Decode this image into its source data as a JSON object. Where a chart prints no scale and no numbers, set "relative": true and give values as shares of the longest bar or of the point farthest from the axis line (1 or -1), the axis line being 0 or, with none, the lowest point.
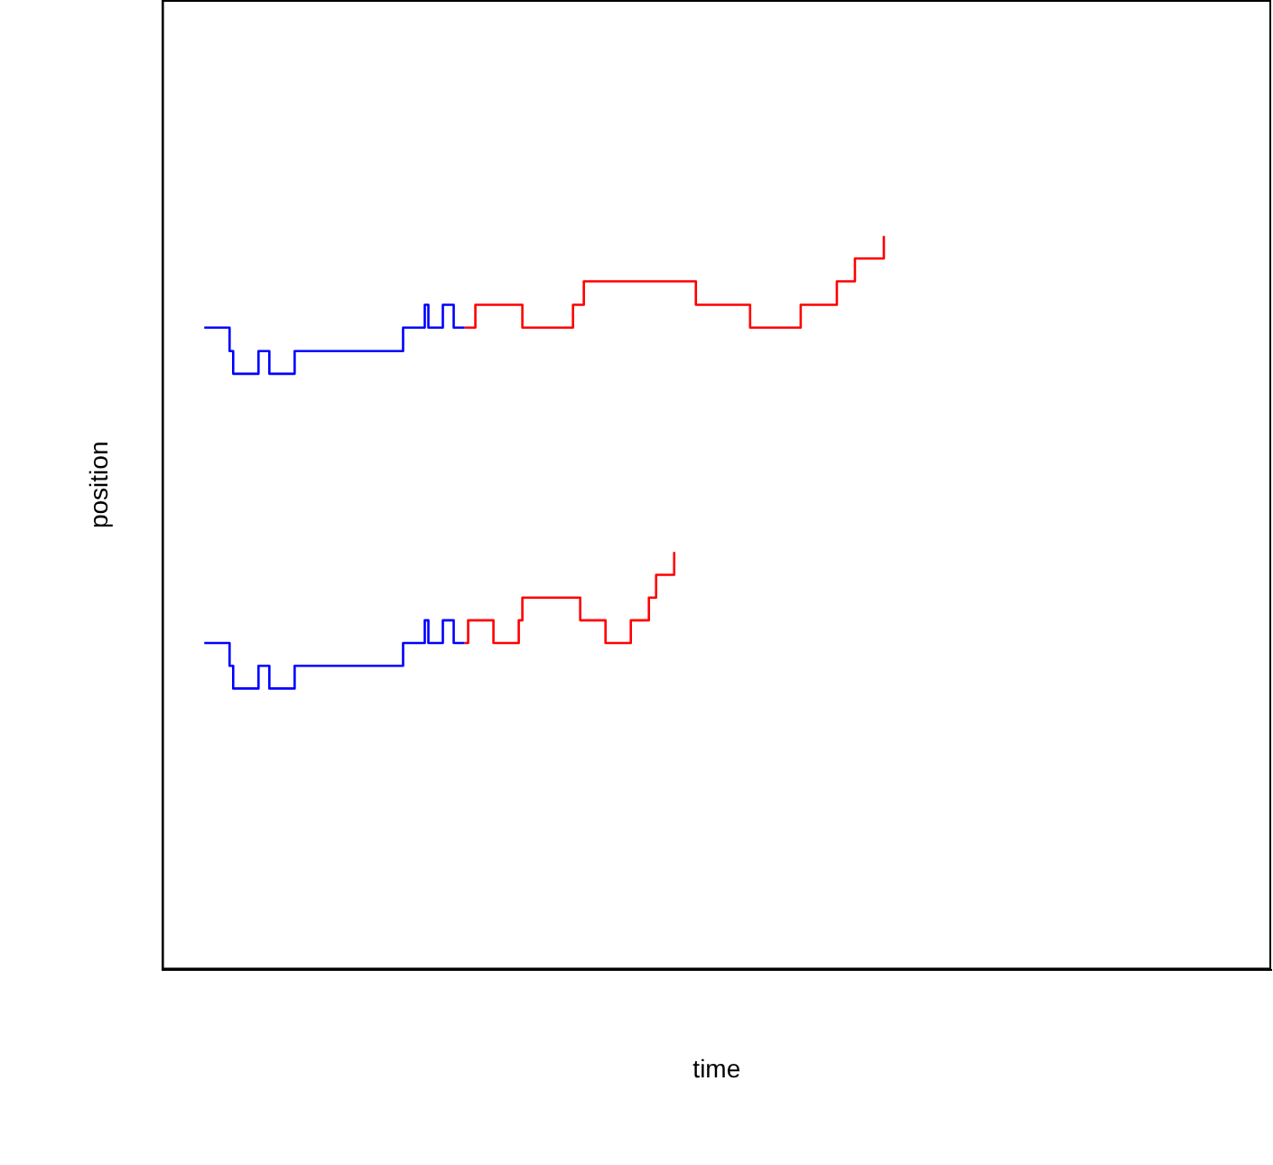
{
  "chart_data": {
    "type": "step",
    "relative": true,
    "xlabel": "time",
    "ylabel": "position",
    "grid": false,
    "legend": false,
    "marker": "none",
    "line_style": "solid",
    "categories": [
      null,
      null,
      null,
      null,
      null,
      null,
      null,
      null,
      null,
      null,
      null,
      null,
      null,
      null,
      null,
      null,
      null,
      null,
      null,
      null,
      null,
      null,
      null,
      null,
      null,
      null,
      null,
      null,
      null,
      null,
      null,
      null,
      null,
      null,
      null,
      null,
      null,
      null,
      null,
      null,
      null,
      null,
      null,
      null,
      null,
      null,
      null,
      null,
      null,
      null,
      null,
      null,
      null,
      null,
      null,
      null,
      null,
      null,
      null,
      null,
      null,
      null,
      null,
      null,
      null,
      null,
      null,
      null,
      null,
      null,
      null,
      null,
      null,
      null,
      null,
      null,
      null,
      null,
      null,
      null,
      null,
      null,
      null,
      null,
      null,
      null,
      null,
      null,
      null,
      null,
      null,
      null,
      null,
      null,
      null,
      null,
      null,
      null,
      null,
      null,
      null,
      null,
      null,
      null,
      null,
      null,
      null,
      null,
      null,
      null,
      null,
      null,
      null,
      null,
      null,
      null,
      null,
      null,
      null,
      null,
      null,
      null,
      null,
      null,
      null,
      null,
      null,
      null,
      null,
      null,
      null,
      null,
      null,
      null,
      null,
      null,
      null,
      null,
      null,
      null,
      null,
      null,
      null,
      null,
      null,
      null,
      null,
      null,
      null,
      null,
      null,
      null,
      null,
      null,
      null,
      null,
      null,
      null,
      null,
      null,
      null,
      null,
      null,
      null,
      null,
      null,
      null,
      null,
      null,
      null,
      null,
      null,
      null,
      null,
      null,
      null,
      null,
      null,
      null,
      null,
      null,
      null,
      null,
      null,
      null,
      null,
      null,
      null,
      null
    ],
    "series": [
      {
        "color": "#0000ff",
        "values": [
          0.875,
          0.875,
          0.875,
          0.875,
          0.875,
          0.875,
          0.875,
          0.843,
          0.812,
          0.812,
          0.812,
          0.812,
          0.812,
          0.812,
          0.812,
          0.843,
          0.843,
          0.843,
          0.812,
          0.812,
          0.812,
          0.812,
          0.812,
          0.812,
          0.812,
          0.843,
          0.843,
          0.843,
          0.843,
          0.843,
          0.843,
          0.843,
          0.843,
          0.843,
          0.843,
          0.843,
          0.843,
          0.843,
          0.843,
          0.843,
          0.843,
          0.843,
          0.843,
          0.843,
          0.843,
          0.843,
          0.843,
          0.843,
          0.843,
          0.843,
          0.843,
          0.843,
          0.843,
          0.843,
          0.843,
          0.875,
          0.875,
          0.875,
          0.875,
          0.875,
          0.875,
          0.906,
          0.875,
          0.875,
          0.875,
          0.875,
          0.906,
          0.906,
          0.906,
          0.875,
          0.875,
          0.875,
          0.875,
          null,
          null,
          null,
          null,
          null,
          null,
          null,
          null,
          null,
          null,
          null,
          null,
          null,
          null,
          null,
          null,
          null,
          null,
          null,
          null,
          null,
          null,
          null,
          null,
          null,
          null,
          null,
          null,
          null,
          null,
          null,
          null,
          null,
          null,
          null,
          null,
          null,
          null,
          null,
          null,
          null,
          null,
          null,
          null,
          null,
          null,
          null,
          null,
          null,
          null,
          null,
          null,
          null,
          null,
          null,
          null,
          null,
          null,
          null,
          null,
          null,
          null,
          null,
          null,
          null,
          null,
          null,
          null,
          null,
          null,
          null,
          null,
          null,
          null,
          null,
          null,
          null,
          null,
          null,
          null,
          null,
          null,
          null,
          null,
          null,
          null,
          null,
          null,
          null,
          null,
          null,
          null,
          null,
          null,
          null,
          null,
          null,
          null,
          null,
          null,
          null,
          null,
          null,
          null,
          null,
          null,
          null,
          null,
          null,
          null,
          null,
          null,
          null,
          null,
          null,
          null
        ]
      },
      {
        "color": "#ff0000",
        "values": [
          null,
          null,
          null,
          null,
          null,
          null,
          null,
          null,
          null,
          null,
          null,
          null,
          null,
          null,
          null,
          null,
          null,
          null,
          null,
          null,
          null,
          null,
          null,
          null,
          null,
          null,
          null,
          null,
          null,
          null,
          null,
          null,
          null,
          null,
          null,
          null,
          null,
          null,
          null,
          null,
          null,
          null,
          null,
          null,
          null,
          null,
          null,
          null,
          null,
          null,
          null,
          null,
          null,
          null,
          null,
          null,
          null,
          null,
          null,
          null,
          null,
          null,
          null,
          null,
          null,
          null,
          null,
          null,
          null,
          null,
          null,
          null,
          0.875,
          0.875,
          0.875,
          0.906,
          0.906,
          0.906,
          0.906,
          0.906,
          0.906,
          0.906,
          0.906,
          0.906,
          0.906,
          0.906,
          0.906,
          0.906,
          0.875,
          0.875,
          0.875,
          0.875,
          0.875,
          0.875,
          0.875,
          0.875,
          0.875,
          0.875,
          0.875,
          0.875,
          0.875,
          0.875,
          0.906,
          0.906,
          0.906,
          0.938,
          0.938,
          0.938,
          0.938,
          0.938,
          0.938,
          0.938,
          0.938,
          0.938,
          0.938,
          0.938,
          0.938,
          0.938,
          0.938,
          0.938,
          0.938,
          0.938,
          0.938,
          0.938,
          0.938,
          0.938,
          0.938,
          0.938,
          0.938,
          0.938,
          0.938,
          0.938,
          0.938,
          0.938,
          0.938,
          0.938,
          0.906,
          0.906,
          0.906,
          0.906,
          0.906,
          0.906,
          0.906,
          0.906,
          0.906,
          0.906,
          0.906,
          0.906,
          0.906,
          0.906,
          0.906,
          0.875,
          0.875,
          0.875,
          0.875,
          0.875,
          0.875,
          0.875,
          0.875,
          0.875,
          0.875,
          0.875,
          0.875,
          0.875,
          0.875,
          0.906,
          0.906,
          0.906,
          0.906,
          0.906,
          0.906,
          0.906,
          0.906,
          0.906,
          0.906,
          0.938,
          0.938,
          0.938,
          0.938,
          0.938,
          0.969,
          0.969,
          0.969,
          0.969,
          0.969,
          0.969,
          0.969,
          0.969,
          1
        ]
      },
      {
        "color": "#0000ff",
        "values": [
          0.445,
          0.445,
          0.445,
          0.445,
          0.445,
          0.445,
          0.445,
          0.414,
          0.383,
          0.383,
          0.383,
          0.383,
          0.383,
          0.383,
          0.383,
          0.414,
          0.414,
          0.414,
          0.383,
          0.383,
          0.383,
          0.383,
          0.383,
          0.383,
          0.383,
          0.414,
          0.414,
          0.414,
          0.414,
          0.414,
          0.414,
          0.414,
          0.414,
          0.414,
          0.414,
          0.414,
          0.414,
          0.414,
          0.414,
          0.414,
          0.414,
          0.414,
          0.414,
          0.414,
          0.414,
          0.414,
          0.414,
          0.414,
          0.414,
          0.414,
          0.414,
          0.414,
          0.414,
          0.414,
          0.414,
          0.445,
          0.445,
          0.445,
          0.445,
          0.445,
          0.445,
          0.476,
          0.445,
          0.445,
          0.445,
          0.445,
          0.476,
          0.476,
          0.476,
          0.445,
          0.445,
          0.445,
          0.445,
          null,
          null,
          null,
          null,
          null,
          null,
          null,
          null,
          null,
          null,
          null,
          null,
          null,
          null,
          null,
          null,
          null,
          null,
          null,
          null,
          null,
          null,
          null,
          null,
          null,
          null,
          null,
          null,
          null,
          null,
          null,
          null,
          null,
          null,
          null,
          null,
          null,
          null,
          null,
          null,
          null,
          null,
          null,
          null,
          null,
          null,
          null,
          null,
          null,
          null,
          null,
          null,
          null,
          null,
          null,
          null,
          null,
          null,
          null,
          null,
          null,
          null,
          null,
          null,
          null,
          null,
          null,
          null,
          null,
          null,
          null,
          null,
          null,
          null,
          null,
          null,
          null,
          null,
          null,
          null,
          null,
          null,
          null,
          null,
          null,
          null,
          null,
          null,
          null,
          null,
          null,
          null,
          null,
          null,
          null,
          null,
          null,
          null,
          null,
          null,
          null,
          null,
          null,
          null,
          null,
          null,
          null,
          null,
          null,
          null,
          null,
          null,
          null,
          null,
          null,
          null
        ]
      },
      {
        "color": "#ff0000",
        "values": [
          null,
          null,
          null,
          null,
          null,
          null,
          null,
          null,
          null,
          null,
          null,
          null,
          null,
          null,
          null,
          null,
          null,
          null,
          null,
          null,
          null,
          null,
          null,
          null,
          null,
          null,
          null,
          null,
          null,
          null,
          null,
          null,
          null,
          null,
          null,
          null,
          null,
          null,
          null,
          null,
          null,
          null,
          null,
          null,
          null,
          null,
          null,
          null,
          null,
          null,
          null,
          null,
          null,
          null,
          null,
          null,
          null,
          null,
          null,
          null,
          null,
          null,
          null,
          null,
          null,
          null,
          null,
          null,
          null,
          null,
          null,
          null,
          0.445,
          0.476,
          0.476,
          0.476,
          0.476,
          0.476,
          0.476,
          0.476,
          0.445,
          0.445,
          0.445,
          0.445,
          0.445,
          0.445,
          0.445,
          0.476,
          0.507,
          0.507,
          0.507,
          0.507,
          0.507,
          0.507,
          0.507,
          0.507,
          0.507,
          0.507,
          0.507,
          0.507,
          0.507,
          0.507,
          0.507,
          0.507,
          0.476,
          0.476,
          0.476,
          0.476,
          0.476,
          0.476,
          0.476,
          0.445,
          0.445,
          0.445,
          0.445,
          0.445,
          0.445,
          0.445,
          0.476,
          0.476,
          0.476,
          0.476,
          0.476,
          0.507,
          0.507,
          0.538,
          0.538,
          0.538,
          0.538,
          0.538,
          0.569,
          null,
          null,
          null,
          null,
          null,
          null,
          null,
          null,
          null,
          null,
          null,
          null,
          null,
          null,
          null,
          null,
          null,
          null,
          null,
          null,
          null,
          null,
          null,
          null,
          null,
          null,
          null,
          null,
          null,
          null,
          null,
          null,
          null,
          null,
          null,
          null,
          null,
          null,
          null,
          null,
          null,
          null,
          null,
          null,
          null,
          null,
          null,
          null,
          null,
          null,
          null,
          null,
          null,
          null,
          null,
          null,
          null,
          null
        ]
      }
    ]
  }
}
